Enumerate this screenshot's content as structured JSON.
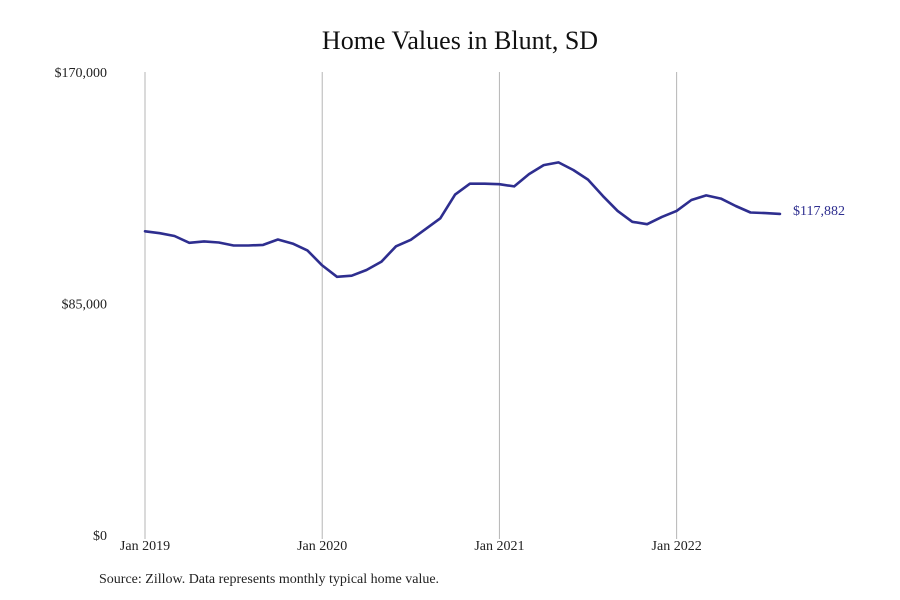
{
  "chart_data": {
    "type": "line",
    "title": "Home Values in Blunt, SD",
    "xlabel": "",
    "ylabel": "",
    "ylim": [
      0,
      170000
    ],
    "y_ticks": [
      {
        "value": 0,
        "label": "$0"
      },
      {
        "value": 85000,
        "label": "$85,000"
      },
      {
        "value": 170000,
        "label": "$170,000"
      }
    ],
    "x_ticks": [
      {
        "date": "2019-01",
        "label": "Jan 2019"
      },
      {
        "date": "2020-01",
        "label": "Jan 2020"
      },
      {
        "date": "2021-01",
        "label": "Jan 2021"
      },
      {
        "date": "2022-01",
        "label": "Jan 2022"
      }
    ],
    "grid": "vertical lines at year ticks",
    "legend": "none",
    "series": [
      {
        "color": "#2e2e8f",
        "x": [
          "2019-01",
          "2019-02",
          "2019-03",
          "2019-04",
          "2019-05",
          "2019-06",
          "2019-07",
          "2019-08",
          "2019-09",
          "2019-10",
          "2019-11",
          "2019-12",
          "2020-01",
          "2020-02",
          "2020-03",
          "2020-04",
          "2020-05",
          "2020-06",
          "2020-07",
          "2020-08",
          "2020-09",
          "2020-10",
          "2020-11",
          "2020-12",
          "2021-01",
          "2021-02",
          "2021-03",
          "2021-04",
          "2021-05",
          "2021-06",
          "2021-07",
          "2021-08",
          "2021-09",
          "2021-10",
          "2021-11",
          "2021-12",
          "2022-01",
          "2022-02",
          "2022-03",
          "2022-04",
          "2022-05",
          "2022-06",
          "2022-07",
          "2022-08"
        ],
        "values": [
          111500,
          110800,
          109800,
          107300,
          107800,
          107400,
          106300,
          106300,
          106500,
          108500,
          107000,
          104500,
          99000,
          94800,
          95200,
          97300,
          100300,
          106000,
          108400,
          112300,
          116300,
          125000,
          129000,
          129000,
          128800,
          128000,
          132500,
          135800,
          136800,
          134000,
          130500,
          124500,
          119000,
          115000,
          114100,
          116800,
          119000,
          123000,
          124700,
          123500,
          120800,
          118400,
          118200,
          117882
        ]
      }
    ],
    "end_label": "$117,882"
  },
  "source_text": "Source: Zillow. Data represents monthly typical home value."
}
